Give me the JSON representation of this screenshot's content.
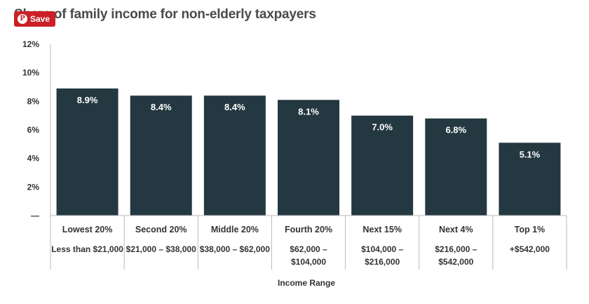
{
  "header": {
    "title": "Share of family income for non-elderly taxpayers",
    "save_label": "Save",
    "pin_icon": "pinterest-icon"
  },
  "colors": {
    "bar": "#243841",
    "save": "#cb2027"
  },
  "chart_data": {
    "type": "bar",
    "categories": [
      "Lowest 20%",
      "Second 20%",
      "Middle 20%",
      "Fourth 20%",
      "Next 15%",
      "Next 4%",
      "Top 1%"
    ],
    "ranges": [
      [
        "Less than $21,000"
      ],
      [
        "$21,000 – $38,000"
      ],
      [
        "$38,000 – $62,000"
      ],
      [
        "$62,000 –",
        "$104,000"
      ],
      [
        "$104,000 –",
        "$216,000"
      ],
      [
        "$216,000 –",
        "$542,000"
      ],
      [
        "+$542,000"
      ]
    ],
    "values": [
      8.9,
      8.4,
      8.4,
      8.1,
      7.0,
      6.8,
      5.1
    ],
    "data_labels": [
      "8.9%",
      "8.4%",
      "8.4%",
      "8.1%",
      "7.0%",
      "6.8%",
      "5.1%"
    ],
    "yticks": [
      0,
      2,
      4,
      6,
      8,
      10,
      12
    ],
    "ytick_labels": [
      "—",
      "2%",
      "4%",
      "6%",
      "8%",
      "10%",
      "12%"
    ],
    "ylim": [
      0,
      12
    ],
    "xlabel": "Income Range",
    "ylabel": "",
    "grid": false,
    "legend": "none"
  }
}
